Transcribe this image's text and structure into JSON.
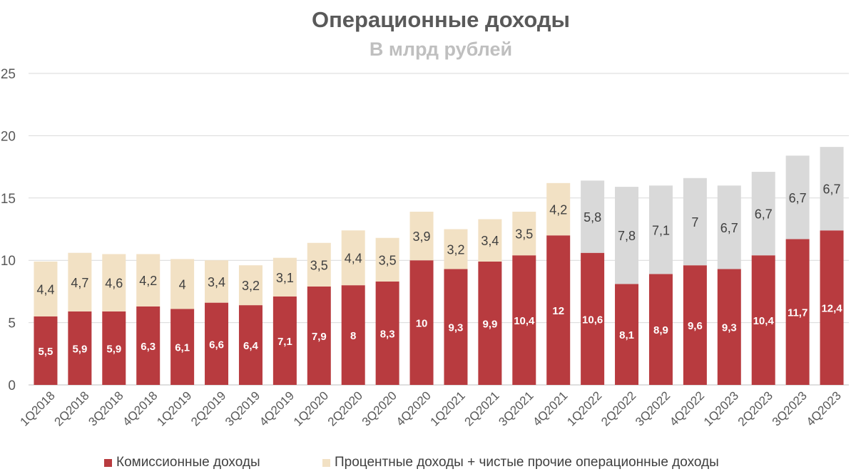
{
  "chart_data": {
    "type": "bar",
    "stacked": true,
    "title": "Операционные доходы",
    "subtitle": "В млрд рублей",
    "ylim": [
      0,
      25
    ],
    "yticks": [
      0,
      5,
      10,
      15,
      20,
      25
    ],
    "grid": true,
    "legend_position": "bottom",
    "categories": [
      "1Q2018",
      "2Q2018",
      "3Q2018",
      "4Q2018",
      "1Q2019",
      "2Q2019",
      "3Q2019",
      "4Q2019",
      "1Q2020",
      "2Q2020",
      "3Q2020",
      "4Q2020",
      "1Q2021",
      "2Q2021",
      "3Q2021",
      "4Q2021",
      "1Q2022",
      "2Q2022",
      "3Q2022",
      "4Q2022",
      "1Q2023",
      "2Q2023",
      "3Q2023",
      "4Q2023"
    ],
    "series": [
      {
        "name": "Комиссионные доходы",
        "color": "#b83b3f",
        "values": [
          5.5,
          5.9,
          5.9,
          6.3,
          6.1,
          6.6,
          6.4,
          7.1,
          7.9,
          8,
          8.3,
          10,
          9.3,
          9.9,
          10.4,
          12,
          10.6,
          8.1,
          8.9,
          9.6,
          9.3,
          10.4,
          11.7,
          12.4
        ],
        "labels": [
          "5,5",
          "5,9",
          "5,9",
          "6,3",
          "6,1",
          "6,6",
          "6,4",
          "7,1",
          "7,9",
          "8",
          "8,3",
          "10",
          "9,3",
          "9,9",
          "10,4",
          "12",
          "10,6",
          "8,1",
          "8,9",
          "9,6",
          "9,3",
          "10,4",
          "11,7",
          "12,4"
        ]
      },
      {
        "name": "Процентные доходы + чистые прочие операционные доходы",
        "color": "#f2e1c4",
        "alt_color": "#d9d9d9",
        "values": [
          4.4,
          4.7,
          4.6,
          4.2,
          4,
          3.4,
          3.2,
          3.1,
          3.5,
          4.4,
          3.5,
          3.9,
          3.2,
          3.4,
          3.5,
          4.2,
          5.8,
          7.8,
          7.1,
          7,
          6.7,
          6.7,
          6.7,
          6.7
        ],
        "labels": [
          "4,4",
          "4,7",
          "4,6",
          "4,2",
          "4",
          "3,4",
          "3,2",
          "3,1",
          "3,5",
          "4,4",
          "3,5",
          "3,9",
          "3,2",
          "3,4",
          "3,5",
          "4,2",
          "5,8",
          "7,8",
          "7,1",
          "7",
          "6,7",
          "6,7",
          "6,7",
          "6,7"
        ]
      }
    ]
  }
}
